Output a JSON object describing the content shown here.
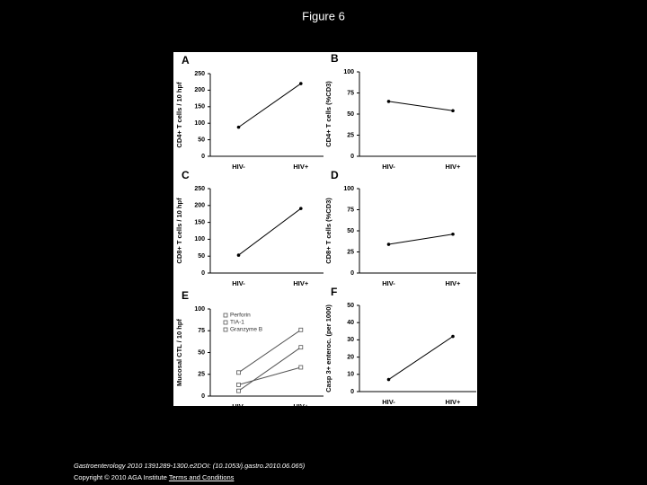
{
  "title": "Figure 6",
  "chart_data": [
    {
      "type": "line",
      "panel": "A",
      "y_label": "CD4+ T cells / 10 hpf",
      "categories": [
        "HIV-",
        "HIV+"
      ],
      "values": [
        88,
        220
      ],
      "color": "#000000",
      "ylim": [
        0,
        250
      ],
      "yticks": [
        0,
        50,
        100,
        150,
        200,
        250
      ]
    },
    {
      "type": "line",
      "panel": "B",
      "y_label": "CD4+ T cells (%CD3)",
      "categories": [
        "HIV-",
        "HIV+"
      ],
      "values": [
        65,
        54
      ],
      "color": "#000000",
      "ylim": [
        0,
        100
      ],
      "yticks": [
        0,
        25,
        50,
        75,
        100
      ]
    },
    {
      "type": "line",
      "panel": "C",
      "y_label": "CD8+ T cells / 10 hpf",
      "categories": [
        "HIV-",
        "HIV+"
      ],
      "values": [
        53,
        191
      ],
      "color": "#000000",
      "ylim": [
        0,
        250
      ],
      "yticks": [
        0,
        50,
        100,
        150,
        200,
        250
      ]
    },
    {
      "type": "line",
      "panel": "D",
      "y_label": "CD8+ T cells (%CD3)",
      "categories": [
        "HIV-",
        "HIV+"
      ],
      "values": [
        34,
        46
      ],
      "color": "#000000",
      "ylim": [
        0,
        100
      ],
      "yticks": [
        0,
        25,
        50,
        75,
        100
      ]
    },
    {
      "type": "line",
      "panel": "E",
      "y_label": "Mucosal CTL / 10 hpf",
      "categories": [
        "HIV-",
        "HIV+"
      ],
      "series": [
        {
          "name": "Perforin",
          "color": "#555555",
          "values": [
            27,
            76
          ]
        },
        {
          "name": "TIA-1",
          "color": "#555555",
          "values": [
            13,
            33
          ]
        },
        {
          "name": "Granzyme B",
          "color": "#555555",
          "values": [
            6,
            56
          ]
        }
      ],
      "ylim": [
        0,
        100
      ],
      "yticks": [
        0,
        25,
        50,
        75,
        100
      ]
    },
    {
      "type": "line",
      "panel": "F",
      "y_label": "Casp 3+ enteroc. (per 1000)",
      "categories": [
        "HIV-",
        "HIV+"
      ],
      "values": [
        7,
        32
      ],
      "color": "#000000",
      "ylim": [
        0,
        50
      ],
      "yticks": [
        0,
        10,
        20,
        30,
        40,
        50
      ]
    }
  ],
  "citation": "Gastroenterology 2010 1391289-1300.e2DOI: (10.1053/j.gastro.2010.06.065)",
  "copyright": "Copyright © 2010 AGA Institute",
  "link": "Terms and Conditions"
}
